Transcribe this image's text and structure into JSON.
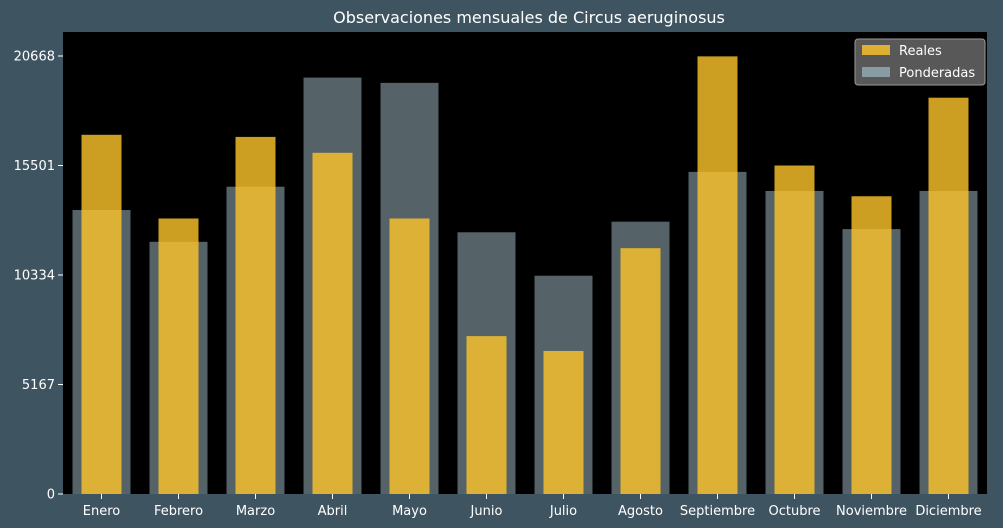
{
  "chart_data": {
    "type": "bar",
    "title": "Observaciones mensuales de Circus aeruginosus",
    "xlabel": "",
    "ylabel": "",
    "categories": [
      "Enero",
      "Febrero",
      "Marzo",
      "Abril",
      "Mayo",
      "Junio",
      "Julio",
      "Agosto",
      "Septiembre",
      "Octubre",
      "Noviembre",
      "Diciembre"
    ],
    "series": [
      {
        "name": "Reales",
        "color": "#ffc62b",
        "values": [
          16950,
          13000,
          16850,
          16100,
          13000,
          7450,
          6750,
          11600,
          20650,
          15500,
          14050,
          18700
        ]
      },
      {
        "name": "Ponderadas",
        "color": "#8ea4ac",
        "values": [
          13400,
          11900,
          14500,
          19650,
          19400,
          12350,
          10300,
          12850,
          15200,
          14300,
          12500,
          14300
        ]
      }
    ],
    "ylim": [
      0,
      21800
    ],
    "yticks": [
      0,
      5167,
      10334,
      15501,
      20668
    ],
    "grid": false,
    "legend": "top-right"
  }
}
